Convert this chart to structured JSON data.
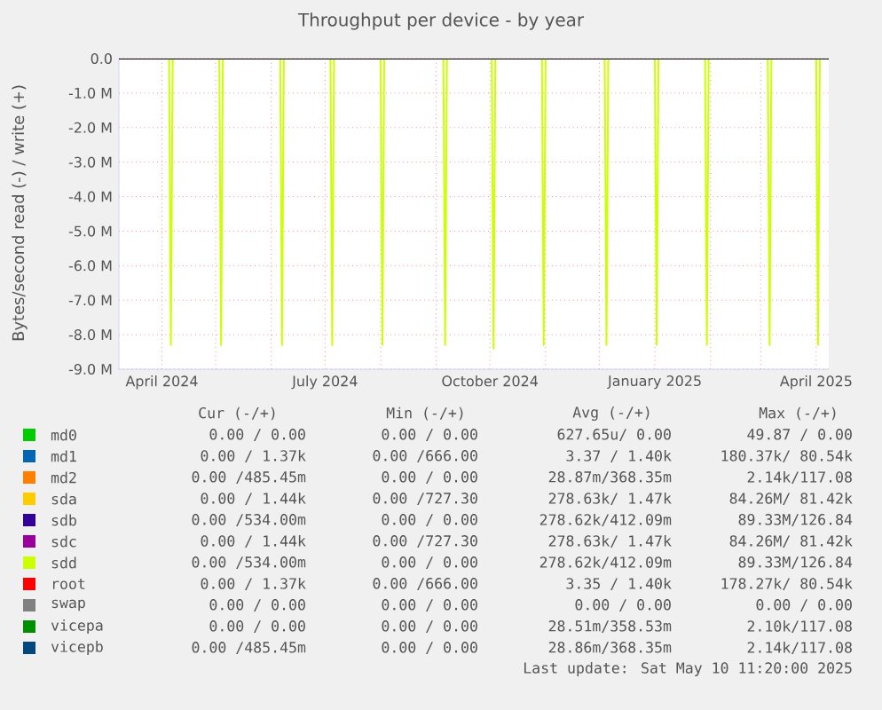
{
  "chart_data": {
    "type": "line",
    "title": "Throughput per device - by year",
    "ylabel": "Bytes/second read (-) / write (+)",
    "x": [
      "2024-03-08",
      "2024-04-05",
      "2024-04-06",
      "2024-04-07",
      "2024-05-03",
      "2024-05-04",
      "2024-05-05",
      "2024-06-06",
      "2024-06-07",
      "2024-06-08",
      "2024-07-04",
      "2024-07-05",
      "2024-07-06",
      "2024-08-01",
      "2024-08-02",
      "2024-08-03",
      "2024-09-05",
      "2024-09-06",
      "2024-09-07",
      "2024-10-02",
      "2024-10-03",
      "2024-10-04",
      "2024-10-30",
      "2024-10-31",
      "2024-11-01",
      "2024-12-04",
      "2024-12-05",
      "2024-12-06",
      "2025-01-01",
      "2025-01-02",
      "2025-01-03",
      "2025-01-29",
      "2025-01-30",
      "2025-01-31",
      "2025-03-05",
      "2025-03-06",
      "2025-03-07",
      "2025-04-01",
      "2025-04-02",
      "2025-04-03",
      "2025-04-08"
    ],
    "series": [
      {
        "name": "md0",
        "color": "#00cc00",
        "values": [
          null,
          null,
          null,
          null,
          null,
          null,
          null,
          null,
          null,
          null,
          null,
          null,
          null,
          null,
          null,
          null,
          null,
          null,
          null,
          null,
          null,
          null,
          null,
          null,
          null,
          null,
          null,
          null,
          null,
          null,
          null,
          null,
          null,
          null,
          null,
          null,
          null,
          null,
          null,
          null,
          null
        ]
      },
      {
        "name": "md1",
        "color": "#0066b3",
        "values": [
          null,
          null,
          null,
          null,
          null,
          null,
          null,
          null,
          null,
          null,
          null,
          null,
          null,
          null,
          null,
          null,
          null,
          null,
          null,
          null,
          null,
          null,
          null,
          null,
          null,
          null,
          null,
          null,
          null,
          null,
          null,
          null,
          null,
          null,
          null,
          null,
          null,
          null,
          null,
          null,
          null
        ]
      },
      {
        "name": "md2",
        "color": "#ff8000",
        "values": [
          null,
          null,
          null,
          null,
          null,
          null,
          null,
          null,
          null,
          null,
          null,
          null,
          null,
          null,
          null,
          null,
          null,
          null,
          null,
          null,
          null,
          null,
          null,
          null,
          null,
          null,
          null,
          null,
          null,
          null,
          null,
          null,
          null,
          null,
          null,
          null,
          null,
          null,
          null,
          null,
          null
        ]
      },
      {
        "name": "sda",
        "color": "#ffcc00",
        "values": [
          null,
          null,
          null,
          null,
          null,
          null,
          null,
          null,
          null,
          null,
          null,
          null,
          null,
          null,
          null,
          null,
          null,
          null,
          null,
          null,
          null,
          null,
          null,
          null,
          null,
          null,
          null,
          null,
          null,
          null,
          null,
          null,
          null,
          null,
          null,
          null,
          null,
          null,
          null,
          null,
          null
        ]
      },
      {
        "name": "sdb",
        "color": "#330099",
        "values": [
          null,
          null,
          null,
          null,
          null,
          null,
          null,
          null,
          null,
          null,
          null,
          null,
          null,
          null,
          null,
          null,
          null,
          null,
          null,
          null,
          null,
          null,
          null,
          null,
          null,
          null,
          null,
          null,
          null,
          null,
          null,
          null,
          null,
          null,
          null,
          null,
          null,
          null,
          null,
          null,
          null
        ]
      },
      {
        "name": "sdc",
        "color": "#990099",
        "values": [
          null,
          null,
          null,
          null,
          null,
          null,
          null,
          null,
          null,
          null,
          null,
          null,
          null,
          null,
          null,
          null,
          null,
          null,
          null,
          null,
          null,
          null,
          null,
          null,
          null,
          null,
          null,
          null,
          null,
          null,
          null,
          null,
          null,
          null,
          null,
          null,
          null,
          null,
          null,
          null,
          null
        ]
      },
      {
        "name": "sdd",
        "color": "#ccff00",
        "values": [
          0,
          0,
          -8.3,
          0,
          0,
          -8.3,
          0,
          0,
          -8.3,
          0,
          0,
          -8.3,
          0,
          0,
          -8.3,
          0,
          0,
          -8.3,
          0,
          0,
          -8.4,
          0,
          0,
          -8.3,
          0,
          0,
          -8.3,
          0,
          0,
          -8.3,
          0,
          0,
          -8.3,
          0,
          0,
          -8.3,
          0,
          0,
          -8.3,
          0,
          0
        ]
      },
      {
        "name": "root",
        "color": "#ff0000",
        "values": [
          null,
          null,
          null,
          null,
          null,
          null,
          null,
          null,
          null,
          null,
          null,
          null,
          null,
          null,
          null,
          null,
          null,
          null,
          null,
          null,
          null,
          null,
          null,
          null,
          null,
          null,
          null,
          null,
          null,
          null,
          null,
          null,
          null,
          null,
          null,
          null,
          null,
          null,
          null,
          null,
          null
        ]
      },
      {
        "name": "swap",
        "color": "#808080",
        "values": [
          null,
          null,
          null,
          null,
          null,
          null,
          null,
          null,
          null,
          null,
          null,
          null,
          null,
          null,
          null,
          null,
          null,
          null,
          null,
          null,
          null,
          null,
          null,
          null,
          null,
          null,
          null,
          null,
          null,
          null,
          null,
          null,
          null,
          null,
          null,
          null,
          null,
          null,
          null,
          null,
          null
        ]
      },
      {
        "name": "vicepa",
        "color": "#008f00",
        "values": [
          null,
          null,
          null,
          null,
          null,
          null,
          null,
          null,
          null,
          null,
          null,
          null,
          null,
          null,
          null,
          null,
          null,
          null,
          null,
          null,
          null,
          null,
          null,
          null,
          null,
          null,
          null,
          null,
          null,
          null,
          null,
          null,
          null,
          null,
          null,
          null,
          null,
          null,
          null,
          null,
          null
        ]
      },
      {
        "name": "vicepb",
        "color": "#00487d",
        "values": [
          null,
          null,
          null,
          null,
          null,
          null,
          null,
          null,
          null,
          null,
          null,
          null,
          null,
          null,
          null,
          null,
          null,
          null,
          null,
          null,
          null,
          null,
          null,
          null,
          null,
          null,
          null,
          null,
          null,
          null,
          null,
          null,
          null,
          null,
          null,
          null,
          null,
          null,
          null,
          null,
          null
        ]
      }
    ],
    "xlim": [
      "2024-03-08",
      "2025-04-08"
    ],
    "xticks": [
      {
        "value": "2024-04-01",
        "label": "April 2024"
      },
      {
        "value": "2024-05-01",
        "label": null
      },
      {
        "value": "2024-06-01",
        "label": null
      },
      {
        "value": "2024-07-01",
        "label": "July 2024"
      },
      {
        "value": "2024-08-01",
        "label": null
      },
      {
        "value": "2024-09-01",
        "label": null
      },
      {
        "value": "2024-10-01",
        "label": "October 2024"
      },
      {
        "value": "2024-11-01",
        "label": null
      },
      {
        "value": "2024-12-01",
        "label": null
      },
      {
        "value": "2025-01-01",
        "label": "January 2025"
      },
      {
        "value": "2025-02-01",
        "label": null
      },
      {
        "value": "2025-03-01",
        "label": null
      },
      {
        "value": "2025-04-01",
        "label": "April 2025"
      }
    ],
    "ylim": [
      -9,
      0
    ],
    "yticks": [
      {
        "value": 0,
        "label": "0.0"
      },
      {
        "value": -1,
        "label": "-1.0 M"
      },
      {
        "value": -2,
        "label": "-2.0 M"
      },
      {
        "value": -3,
        "label": "-3.0 M"
      },
      {
        "value": -4,
        "label": "-4.0 M"
      },
      {
        "value": -5,
        "label": "-5.0 M"
      },
      {
        "value": -6,
        "label": "-6.0 M"
      },
      {
        "value": -7,
        "label": "-7.0 M"
      },
      {
        "value": -8,
        "label": "-8.0 M"
      },
      {
        "value": -9,
        "label": "-9.0 M"
      }
    ],
    "ref_lines": [
      {
        "axis": "y",
        "value": 0,
        "color": "#000000"
      }
    ],
    "grid": true,
    "legend": "bottom",
    "annotations": [
      "Cur (-/+)",
      "Min (-/+)",
      "Avg (-/+)",
      "Max (-/+)",
      "0.00 / 0.00",
      "0.00 / 0.00",
      "627.65u/ 0.00",
      "49.87 / 0.00",
      "0.00 / 1.37k",
      "0.00 /666.00",
      "3.37 / 1.40k",
      "180.37k/ 80.54k",
      "0.00 /485.45m",
      "0.00 / 0.00",
      "28.87m/368.35m",
      "2.14k/117.08",
      "0.00 / 1.44k",
      "0.00 /727.30",
      "278.63k/ 1.47k",
      "84.26M/ 81.42k",
      "0.00 /534.00m",
      "0.00 / 0.00",
      "278.62k/412.09m",
      "89.33M/126.84",
      "0.00 / 1.44k",
      "0.00 /727.30",
      "278.63k/ 1.47k",
      "84.26M/ 81.42k",
      "0.00 /534.00m",
      "0.00 / 0.00",
      "278.62k/412.09m",
      "89.33M/126.84",
      "0.00 / 1.37k",
      "0.00 /666.00",
      "3.35 / 1.40k",
      "178.27k/ 80.54k",
      "0.00 / 0.00",
      "0.00 / 0.00",
      "0.00 / 0.00",
      "0.00 / 0.00",
      "0.00 / 0.00",
      "0.00 / 0.00",
      "28.51m/358.53m",
      "2.10k/117.08",
      "0.00 /485.45m",
      "0.00 / 0.00",
      "28.86m/368.35m",
      "2.14k/117.08",
      "Last update: Sat May 10 11:20:00 2025"
    ]
  }
}
